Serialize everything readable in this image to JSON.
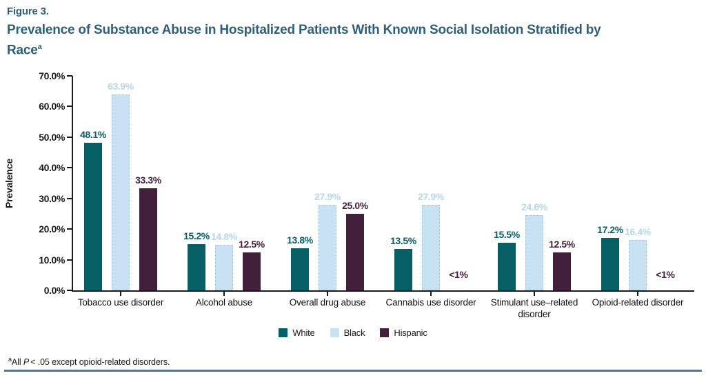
{
  "header": {
    "figure_label": "Figure 3.",
    "title_line1": "Prevalence of Substance Abuse in Hospitalized Patients With Known Social Isolation Stratified by",
    "title_line2": "Race",
    "title_superscript": "a",
    "title_color": "#2e5f7a"
  },
  "chart_data": {
    "type": "bar",
    "title": "Prevalence of Substance Abuse in Hospitalized Patients With Known Social Isolation Stratified by Race",
    "xlabel": "",
    "ylabel": "Prevalence",
    "ylim": [
      0,
      70
    ],
    "yticks": [
      "0.0%",
      "10.0%",
      "20.0%",
      "30.0%",
      "40.0%",
      "50.0%",
      "60.0%",
      "70.0%"
    ],
    "grid": false,
    "legend_position": "bottom-center",
    "categories": [
      "Tobacco use disorder",
      "Alcohol abuse",
      "Overall drug abuse",
      "Cannabis use disorder",
      "Stimulant use–related disorder",
      "Opioid-related disorder"
    ],
    "series": [
      {
        "name": "White",
        "color": "#075f66",
        "label_color": "#075f66",
        "values": [
          48.1,
          15.2,
          13.8,
          13.5,
          15.5,
          17.2
        ],
        "labels": [
          "48.1%",
          "15.2%",
          "13.8%",
          "13.5%",
          "15.5%",
          "17.2%"
        ]
      },
      {
        "name": "Black",
        "color": "#c9e2f3",
        "label_color": "#b5d7ec",
        "values": [
          63.9,
          14.8,
          27.9,
          27.9,
          24.6,
          16.4
        ],
        "labels": [
          "63.9%",
          "14.8%",
          "27.9%",
          "27.9%",
          "24.6%",
          "16.4%"
        ]
      },
      {
        "name": "Hispanic",
        "color": "#421f3b",
        "label_color": "#421f3b",
        "values": [
          33.3,
          12.5,
          25.0,
          0,
          12.5,
          0
        ],
        "labels": [
          "33.3%",
          "12.5%",
          "25.0%",
          "<1%",
          "12.5%",
          "<1%"
        ]
      }
    ]
  },
  "footnote": {
    "superscript": "a",
    "prefix": "All ",
    "italic_p": "P",
    "suffix": "< .05 except opioid-related disorders."
  }
}
